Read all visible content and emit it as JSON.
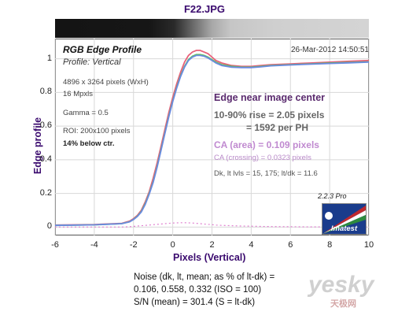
{
  "file_title": "F22.JPG",
  "chart_data": {
    "type": "line",
    "title": "RGB Edge Profile",
    "subtitle": "Profile: Vertical",
    "date": "26-Mar-2012 14:50:51",
    "xlabel": "Pixels (Vertical)",
    "ylabel": "Edge profile",
    "xlim": [
      -6,
      10
    ],
    "ylim": [
      -0.05,
      1.12
    ],
    "xticks": [
      "-6",
      "-4",
      "-2",
      "0",
      "2",
      "4",
      "6",
      "8",
      "10"
    ],
    "yticks": [
      "0",
      "0.2",
      "0.4",
      "0.6",
      "0.8",
      "1"
    ],
    "x": [
      -6,
      -4,
      -2.6,
      -2.2,
      -2,
      -1.8,
      -1.6,
      -1.4,
      -1.2,
      -1,
      -0.8,
      -0.6,
      -0.4,
      -0.2,
      0,
      0.2,
      0.4,
      0.6,
      0.8,
      1,
      1.2,
      1.4,
      1.6,
      1.8,
      2,
      2.2,
      2.5,
      3,
      3.5,
      4,
      4.5,
      5,
      6,
      7,
      8,
      9,
      10
    ],
    "series": [
      {
        "color": "#e8607a",
        "values": [
          0.012,
          0.015,
          0.022,
          0.035,
          0.05,
          0.07,
          0.1,
          0.15,
          0.21,
          0.29,
          0.38,
          0.48,
          0.58,
          0.68,
          0.77,
          0.85,
          0.92,
          0.98,
          1.02,
          1.04,
          1.05,
          1.05,
          1.04,
          1.03,
          1.01,
          0.99,
          0.975,
          0.96,
          0.955,
          0.955,
          0.96,
          0.965,
          0.97,
          0.975,
          0.98,
          0.985,
          0.99
        ]
      },
      {
        "color": "#60c060",
        "values": [
          0.01,
          0.013,
          0.02,
          0.032,
          0.046,
          0.065,
          0.093,
          0.14,
          0.2,
          0.27,
          0.36,
          0.46,
          0.56,
          0.66,
          0.75,
          0.83,
          0.9,
          0.955,
          0.995,
          1.015,
          1.025,
          1.025,
          1.02,
          1.01,
          0.995,
          0.98,
          0.965,
          0.955,
          0.95,
          0.95,
          0.955,
          0.96,
          0.965,
          0.97,
          0.975,
          0.978,
          0.982
        ]
      },
      {
        "color": "#6a8ae0",
        "values": [
          0.01,
          0.013,
          0.02,
          0.031,
          0.045,
          0.063,
          0.09,
          0.135,
          0.195,
          0.265,
          0.355,
          0.455,
          0.555,
          0.655,
          0.745,
          0.825,
          0.895,
          0.95,
          0.99,
          1.01,
          1.02,
          1.02,
          1.015,
          1.005,
          0.99,
          0.975,
          0.96,
          0.95,
          0.948,
          0.948,
          0.952,
          0.958,
          0.963,
          0.968,
          0.972,
          0.976,
          0.98
        ]
      },
      {
        "color": "#e080d0",
        "dashed": true,
        "values": [
          0.0,
          0.0,
          0.0,
          0.002,
          0.004,
          0.006,
          0.008,
          0.01,
          0.012,
          0.014,
          0.016,
          0.018,
          0.02,
          0.022,
          0.024,
          0.025,
          0.026,
          0.026,
          0.025,
          0.024,
          0.022,
          0.02,
          0.018,
          0.016,
          0.014,
          0.012,
          0.01,
          0.008,
          0.006,
          0.005,
          0.004,
          0.003,
          0.002,
          0.001,
          0.001,
          0.0,
          0.0
        ]
      }
    ]
  },
  "info": {
    "dims": "4896 x 3264 pixels (WxH)",
    "mpxls": "16 Mpxls",
    "gamma": "Gamma = 0.5",
    "roi": "ROI: 200x100 pixels",
    "below": "14% below ctr."
  },
  "results": {
    "edge_title": "Edge near image center",
    "rise_line1": "10-90% rise = 2.05 pixels",
    "rise_line2": "= 1592 per PH",
    "ca_area": "CA (area) = 0.109 pixels",
    "ca_crossing": "CA (crossing) = 0.0323 pixels",
    "dk_line": "Dk, lt lvls = 15, 175;  lt/dk = 11.6"
  },
  "version": "2.2.3  Pro",
  "logo_text": "Imatest",
  "noise": {
    "line1": "Noise (dk, lt, mean; as % of lt-dk) =",
    "line2": "0.106,  0.558,  0.332  (ISO =  100)",
    "line3": "S/N (mean) = 301.4  (S = lt-dk)"
  },
  "watermark": "yesky",
  "watermark_sub": "天极网"
}
